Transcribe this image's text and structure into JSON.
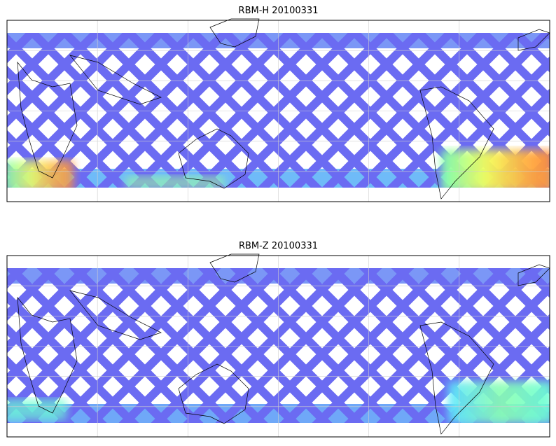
{
  "panels": [
    {
      "title": "RBM-H 20100331"
    },
    {
      "title": "RBM-Z 20100331"
    }
  ]
}
